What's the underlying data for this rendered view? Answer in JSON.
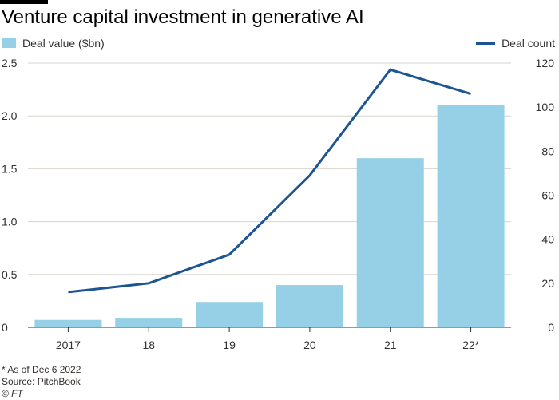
{
  "title": "Venture capital investment in generative AI",
  "legend": {
    "deal_value_label": "Deal value ($bn)",
    "deal_count_label": "Deal count"
  },
  "footnote": "* As of Dec 6 2022",
  "source": "Source: PitchBook",
  "credit": "© FT",
  "colors": {
    "bar": "#96d0e6",
    "line": "#1d5593",
    "grid": "#d9d4cd",
    "axis": "#33302e",
    "text": "#33302e"
  },
  "chart_data": {
    "type": "bar",
    "title": "Venture capital investment in generative AI",
    "categories": [
      "2017",
      "18",
      "19",
      "20",
      "21",
      "22*"
    ],
    "series": [
      {
        "name": "Deal value ($bn)",
        "type": "bar",
        "axis": "left",
        "values": [
          0.07,
          0.09,
          0.24,
          0.4,
          1.6,
          2.1
        ]
      },
      {
        "name": "Deal count",
        "type": "line",
        "axis": "right",
        "values": [
          16,
          20,
          33,
          69,
          117,
          106
        ]
      }
    ],
    "y_left": {
      "lim": [
        0,
        2.5
      ],
      "ticks": [
        "0",
        "0.5",
        "1.0",
        "1.5",
        "2.0",
        "2.5"
      ]
    },
    "y_right": {
      "lim": [
        0,
        120
      ],
      "ticks": [
        "0",
        "20",
        "40",
        "60",
        "80",
        "100",
        "120"
      ]
    },
    "grid": true
  }
}
